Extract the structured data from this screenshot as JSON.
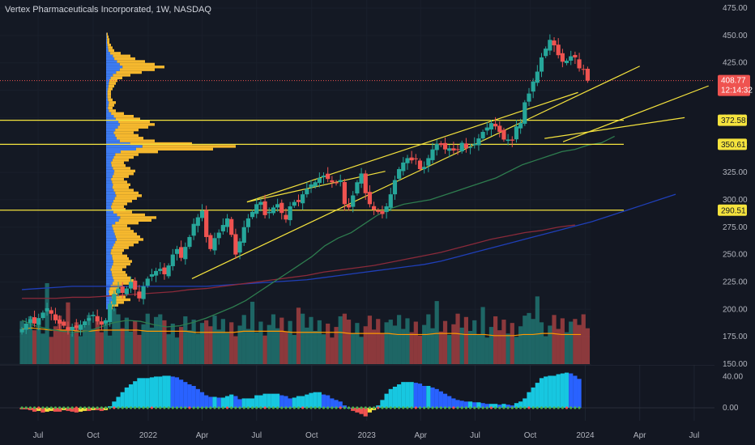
{
  "header": {
    "title": "Vertex Pharmaceuticals Incorporated, 1W, NASDAQ"
  },
  "colors": {
    "background": "#131722",
    "pane": "#161c27",
    "up": "#26a69a",
    "down": "#ef5350",
    "channel": "#f5e33d",
    "profile_blue": "#3d7bf0",
    "profile_orange": "#f5b82e",
    "sma_fast": "#2e7d4f",
    "sma_mid": "#1f3fb8",
    "sma_slow": "#8a2a3a",
    "vol_ma": "#ff9800",
    "osc_cyan": "#17c7e0",
    "osc_blue": "#2962ff",
    "osc_red": "#ef5350",
    "osc_green": "#4caf50",
    "osc_yellow": "#f5e33d"
  },
  "chart_data": {
    "type": "candlestick",
    "title": "Vertex Pharmaceuticals Incorporated, 1W, NASDAQ",
    "price_axis": {
      "ticks": [
        "475.00",
        "450.00",
        "425.00",
        "400.00",
        "375.00",
        "350.00",
        "325.00",
        "300.00",
        "275.00",
        "250.00",
        "225.00",
        "200.00",
        "175.00",
        "150.00"
      ],
      "range": [
        150,
        475
      ]
    },
    "time_axis": {
      "ticks": [
        "Jul",
        "Oct",
        "2022",
        "Apr",
        "Jul",
        "Oct",
        "2023",
        "Apr",
        "Jul",
        "Oct",
        "2024",
        "Apr",
        "Jul"
      ]
    },
    "price_tags": [
      {
        "value": "408.77",
        "extra": "12:14:32",
        "kind": "last"
      },
      {
        "value": "372.58",
        "kind": "level"
      },
      {
        "value": "350.61",
        "kind": "level"
      },
      {
        "value": "290.51",
        "kind": "level"
      }
    ],
    "horizontal_levels": [
      372.58,
      350.61,
      290.51
    ],
    "oscillator_axis": {
      "ticks": [
        "40.00",
        "0.00"
      ],
      "range": [
        -20,
        50
      ]
    },
    "series": [
      {
        "name": "price",
        "start": "2021-06-04",
        "interval_days": 7,
        "close": [
          182,
          187,
          191,
          187,
          192,
          197,
          201,
          196,
          190,
          187,
          185,
          181,
          184,
          183,
          186,
          189,
          192,
          195,
          189,
          186,
          190,
          205,
          214,
          219,
          215,
          219,
          225,
          218,
          210,
          221,
          228,
          232,
          235,
          237,
          232,
          240,
          250,
          255,
          247,
          257,
          266,
          278,
          284,
          290,
          266,
          255,
          265,
          270,
          277,
          283,
          268,
          250,
          262,
          275,
          283,
          289,
          296,
          298,
          286,
          289,
          293,
          296,
          288,
          282,
          294,
          298,
          298,
          305,
          310,
          314,
          316,
          320,
          322,
          319,
          316,
          315,
          318,
          296,
          293,
          304,
          316,
          324,
          306,
          296,
          291,
          289,
          287,
          294,
          305,
          318,
          328,
          334,
          338,
          336,
          337,
          328,
          330,
          338,
          346,
          351,
          350,
          346,
          347,
          345,
          346,
          352,
          347,
          348,
          351,
          356,
          362,
          366,
          370,
          367,
          362,
          355,
          355,
          354,
          367,
          370,
          389,
          397,
          408,
          417,
          430,
          438,
          446,
          441,
          432,
          426,
          427,
          431,
          430,
          420,
          419,
          408.77
        ]
      },
      {
        "name": "sma_fast",
        "values": [
          190,
          185,
          182,
          180,
          179,
          180,
          184,
          188,
          190,
          189,
          186,
          184,
          185,
          188,
          192,
          197,
          202,
          208,
          216,
          224,
          232,
          240,
          248,
          258,
          265,
          270,
          278,
          286,
          292,
          296,
          298,
          300,
          304,
          308,
          312,
          316,
          320,
          326,
          332,
          336,
          340,
          344,
          346,
          350,
          352,
          358
        ]
      },
      {
        "name": "sma_mid",
        "values": [
          218,
          219,
          220,
          221,
          221,
          221,
          221,
          221,
          221,
          221,
          221,
          221,
          222,
          223,
          224,
          225,
          226,
          227,
          229,
          231,
          233,
          235,
          237,
          239,
          241,
          244,
          248,
          252,
          256,
          260,
          264,
          268,
          272,
          276,
          280,
          285,
          290,
          295,
          300,
          305
        ]
      },
      {
        "name": "sma_slow",
        "values": [
          210,
          210,
          210,
          211,
          211,
          212,
          213,
          214,
          215,
          216,
          218,
          219,
          221,
          223,
          225,
          227,
          229,
          231,
          234,
          236,
          238,
          240,
          243,
          246,
          249,
          252,
          256,
          260,
          264,
          267,
          270,
          272,
          275,
          277
        ]
      },
      {
        "name": "volume_ma",
        "values": [
          182,
          183,
          182,
          181,
          181,
          181,
          180,
          180,
          181,
          181,
          181,
          181,
          181,
          180,
          180,
          180,
          180,
          180,
          179,
          179,
          179,
          179,
          179,
          180,
          180,
          180,
          180,
          180,
          179,
          179,
          179,
          179,
          179,
          179,
          178,
          178,
          178,
          178,
          178,
          177,
          177,
          177,
          177,
          178,
          178,
          178,
          177,
          177,
          177,
          176,
          176,
          176,
          177,
          177,
          178,
          178,
          177,
          177,
          177
        ]
      },
      {
        "name": "oscillator",
        "values": [
          -2,
          -2,
          -3,
          -5,
          -4,
          -6,
          -5,
          -4,
          -5,
          -5,
          -3,
          -4,
          -5,
          -6,
          -5,
          -4,
          -4,
          -3,
          -3,
          -4,
          -3,
          2,
          8,
          14,
          20,
          26,
          30,
          34,
          38,
          38,
          38,
          39,
          40,
          40,
          41,
          41,
          40,
          39,
          36,
          33,
          30,
          28,
          24,
          20,
          16,
          14,
          14,
          13,
          13,
          15,
          17,
          15,
          11,
          12,
          12,
          12,
          16,
          16,
          18,
          18,
          18,
          18,
          16,
          15,
          12,
          13,
          15,
          15,
          17,
          19,
          20,
          20,
          17,
          16,
          12,
          10,
          8,
          3,
          0,
          -4,
          -6,
          -8,
          -11,
          -6,
          -3,
          3,
          10,
          18,
          24,
          27,
          30,
          33,
          33,
          33,
          32,
          31,
          28,
          28,
          26,
          24,
          21,
          18,
          15,
          12,
          10,
          9,
          8,
          8,
          7,
          7,
          6,
          5,
          5,
          5,
          4,
          5,
          4,
          3,
          6,
          8,
          12,
          20,
          26,
          32,
          38,
          40,
          41,
          41,
          43,
          44,
          45,
          44,
          41,
          37
        ]
      },
      {
        "name": "volume_profile",
        "bins_from_price": 200,
        "bin_size": 2.5,
        "total": [
          8,
          15,
          22,
          30,
          24,
          14,
          12,
          16,
          20,
          28,
          34,
          30,
          26,
          24,
          20,
          25,
          30,
          32,
          28,
          26,
          20,
          22,
          28,
          34,
          40,
          46,
          42,
          38,
          34,
          30,
          26,
          40,
          56,
          62,
          48,
          32,
          24,
          22,
          26,
          32,
          38,
          44,
          40,
          34,
          28,
          30,
          26,
          22,
          28,
          34,
          36,
          30,
          24,
          22,
          28,
          34,
          40,
          64,
          132,
          160,
          106,
          60,
          46,
          40,
          34,
          40,
          52,
          60,
          54,
          42,
          34,
          22,
          12,
          8,
          10,
          12,
          8,
          6,
          6,
          6,
          8,
          10,
          12,
          14,
          20,
          30,
          44,
          60,
          72,
          60,
          48,
          36,
          30,
          18,
          10,
          8,
          6,
          4,
          4,
          3,
          2
        ]
      }
    ]
  }
}
